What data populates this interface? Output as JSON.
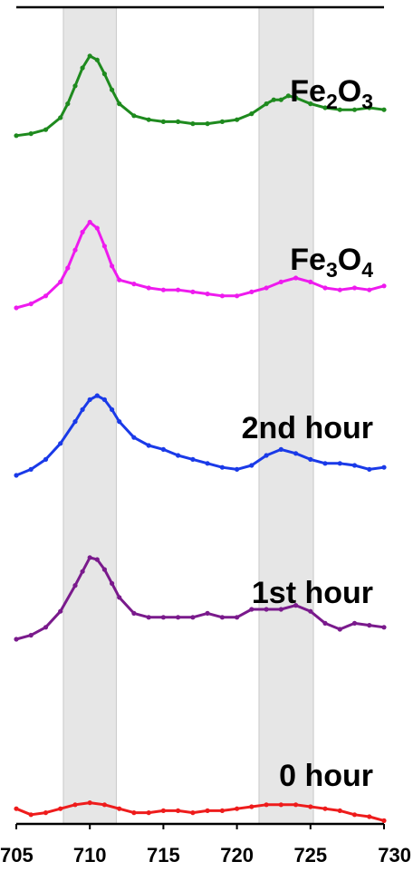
{
  "chart_data": {
    "type": "line",
    "title": "",
    "xlabel": "",
    "ylabel": "",
    "xlim": [
      705,
      730
    ],
    "xticks": [
      705,
      710,
      715,
      720,
      725,
      730
    ],
    "xtick_labels": [
      "705",
      "710",
      "715",
      "720",
      "725",
      "730"
    ],
    "shaded_bands": [
      [
        708.2,
        711.8
      ],
      [
        721.5,
        725.2
      ]
    ],
    "band_color": "#e6e6e6",
    "grid": false,
    "legend": "none",
    "stacked_offset": true,
    "series": [
      {
        "name": "Fe2O3",
        "label_parts": [
          {
            "text": "Fe",
            "sub": false
          },
          {
            "text": "2",
            "sub": true
          },
          {
            "text": "O",
            "sub": false
          },
          {
            "text": "3",
            "sub": true
          }
        ],
        "color": "#1e8a1e",
        "x": [
          705,
          706,
          707,
          708,
          708.5,
          709,
          709.5,
          710,
          710.5,
          711,
          711.5,
          712,
          713,
          714,
          715,
          716,
          717,
          718,
          719,
          720,
          721,
          722,
          722.5,
          723,
          723.5,
          724,
          725,
          726,
          727,
          728,
          729,
          730
        ],
        "y": [
          0.1,
          0.2,
          0.4,
          1.0,
          1.7,
          2.6,
          3.5,
          4.1,
          3.9,
          3.2,
          2.4,
          1.7,
          1.1,
          0.9,
          0.8,
          0.8,
          0.7,
          0.7,
          0.8,
          0.9,
          1.2,
          1.7,
          1.9,
          1.9,
          2.1,
          2.0,
          1.7,
          1.5,
          1.4,
          1.4,
          1.5,
          1.4
        ]
      },
      {
        "name": "Fe3O4",
        "label_parts": [
          {
            "text": "Fe",
            "sub": false
          },
          {
            "text": "3",
            "sub": true
          },
          {
            "text": "O",
            "sub": false
          },
          {
            "text": "4",
            "sub": true
          }
        ],
        "color": "#ee1bee",
        "x": [
          705,
          706,
          707,
          708,
          708.5,
          709,
          709.5,
          710,
          710.5,
          711,
          711.5,
          712,
          713,
          714,
          715,
          716,
          717,
          718,
          719,
          720,
          721,
          722,
          723,
          724,
          725,
          726,
          727,
          728,
          729,
          730
        ],
        "y": [
          0.0,
          0.2,
          0.6,
          1.3,
          2.0,
          2.9,
          3.8,
          4.3,
          4.0,
          3.1,
          2.1,
          1.4,
          1.2,
          1.0,
          0.9,
          0.9,
          0.8,
          0.7,
          0.6,
          0.6,
          0.8,
          1.0,
          1.3,
          1.5,
          1.3,
          1.0,
          0.9,
          1.0,
          0.9,
          1.1
        ]
      },
      {
        "name": "2nd hour",
        "label_parts": [
          {
            "text": "2nd hour",
            "sub": false
          }
        ],
        "color": "#1a3ae8",
        "x": [
          705,
          706,
          707,
          708,
          709,
          709.5,
          710,
          710.5,
          711,
          711.5,
          712,
          713,
          714,
          715,
          716,
          717,
          718,
          719,
          720,
          721,
          722,
          723,
          724,
          725,
          726,
          727,
          728,
          729,
          730
        ],
        "y": [
          0.0,
          0.3,
          0.8,
          1.6,
          2.7,
          3.3,
          3.8,
          4.0,
          3.8,
          3.3,
          2.7,
          1.9,
          1.5,
          1.3,
          1.0,
          0.8,
          0.6,
          0.4,
          0.3,
          0.5,
          1.0,
          1.3,
          1.1,
          0.8,
          0.6,
          0.6,
          0.5,
          0.3,
          0.4
        ]
      },
      {
        "name": "1st hour",
        "label_parts": [
          {
            "text": "1st hour",
            "sub": false
          }
        ],
        "color": "#7a1a8c",
        "x": [
          705,
          706,
          707,
          708,
          709,
          709.5,
          710,
          710.5,
          711,
          711.5,
          712,
          713,
          714,
          715,
          716,
          717,
          718,
          719,
          720,
          721,
          722,
          723,
          724,
          725,
          726,
          727,
          728,
          729,
          730
        ],
        "y": [
          0.0,
          0.2,
          0.6,
          1.4,
          2.7,
          3.4,
          4.1,
          4.0,
          3.5,
          2.8,
          2.1,
          1.3,
          1.1,
          1.1,
          1.1,
          1.1,
          1.3,
          1.1,
          1.1,
          1.5,
          1.5,
          1.5,
          1.7,
          1.4,
          0.8,
          0.5,
          0.8,
          0.7,
          0.6
        ]
      },
      {
        "name": "0 hour",
        "label_parts": [
          {
            "text": "0 hour",
            "sub": false
          }
        ],
        "color": "#ee1c1c",
        "x": [
          705,
          706,
          707,
          708,
          709,
          710,
          711,
          712,
          713,
          714,
          715,
          716,
          717,
          718,
          719,
          720,
          721,
          722,
          723,
          724,
          725,
          726,
          727,
          728,
          729,
          730
        ],
        "y": [
          0.4,
          0.1,
          0.2,
          0.4,
          0.6,
          0.7,
          0.6,
          0.4,
          0.2,
          0.2,
          0.3,
          0.3,
          0.2,
          0.3,
          0.3,
          0.4,
          0.5,
          0.6,
          0.6,
          0.6,
          0.5,
          0.4,
          0.3,
          0.1,
          0.0,
          -0.2
        ]
      }
    ]
  }
}
